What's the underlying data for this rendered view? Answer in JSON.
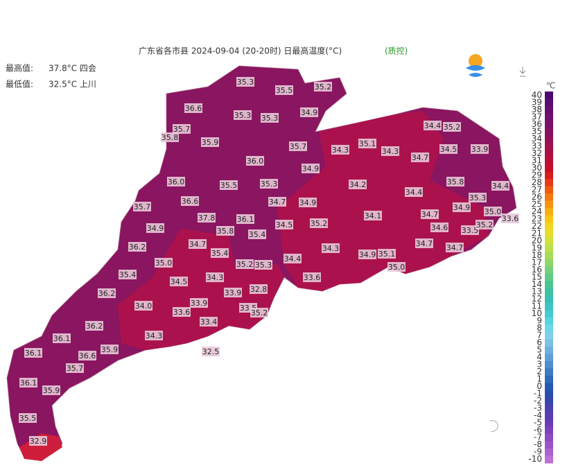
{
  "header": {
    "title": "广东省各市县 2024-09-04 (20-20时) 日最高温度(°C)",
    "qc": "(质控)"
  },
  "stats": {
    "max_label": "最高值:",
    "max_value": "37.8°C 四会",
    "min_label": "最低值:",
    "min_value": "32.5°C 上川"
  },
  "legend": {
    "unit": "℃",
    "ticks": [
      40,
      39,
      38,
      37,
      36,
      35,
      34,
      33,
      32,
      31,
      30,
      29,
      28,
      27,
      26,
      25,
      24,
      23,
      22,
      21,
      20,
      19,
      18,
      17,
      16,
      15,
      14,
      13,
      12,
      11,
      10,
      9,
      8,
      7,
      6,
      5,
      4,
      3,
      2,
      1,
      0,
      -1,
      -2,
      -3,
      -4,
      -5,
      -6,
      -7,
      -8,
      -9,
      -10
    ],
    "colors": [
      "#4b0a6e",
      "#5a0d72",
      "#640f70",
      "#6e106c",
      "#781166",
      "#85115f",
      "#921156",
      "#a0104c",
      "#ad0f42",
      "#bb0e37",
      "#c80d2c",
      "#d81c1c",
      "#e63a16",
      "#ed5a12",
      "#f27a10",
      "#f5960f",
      "#f7b00f",
      "#f7c613",
      "#f1d620",
      "#e4df2d",
      "#d2e03a",
      "#bde04a",
      "#a6dc5a",
      "#8ed66a",
      "#76d07a",
      "#5fcb87",
      "#4cc594",
      "#3fc1a2",
      "#3cbfb2",
      "#3ec3c3",
      "#45cbd2",
      "#56d4de",
      "#6cd8e6",
      "#7fd0ea",
      "#7cc1e6",
      "#6fb0df",
      "#5f9fd6",
      "#4f8dcd",
      "#3f7bc3",
      "#306aba",
      "#2259b2",
      "#2a4eb0",
      "#3a46b0",
      "#4a40b2",
      "#5a3cb4",
      "#6a3cb8",
      "#7b42bd",
      "#8c4ac3",
      "#9d55c9",
      "#ae62cf",
      "#bf70d6"
    ]
  },
  "stations": [
    "35.3",
    "35.5",
    "35.2",
    "36.6",
    "34.9",
    "35.3",
    "35.3",
    "35.7",
    "35.8",
    "35.9",
    "35.7",
    "34.3",
    "35.1",
    "34.3",
    "34.4",
    "35.2",
    "34.5",
    "33.9",
    "34.7",
    "36.0",
    "34.9",
    "36.0",
    "35.5",
    "35.3",
    "34.2",
    "34.4",
    "35.8",
    "34.4",
    "35.7",
    "36.6",
    "34.7",
    "34.9",
    "35.3",
    "34.9",
    "35.0",
    "33.6",
    "37.8",
    "36.1",
    "35.8",
    "35.4",
    "34.5",
    "35.2",
    "34.1",
    "34.7",
    "34.6",
    "33.5",
    "35.2",
    "34.9",
    "34.7",
    "36.2",
    "35.4",
    "34.3",
    "34.9",
    "35.1",
    "34.7",
    "34.7",
    "35.0",
    "35.2",
    "35.3",
    "34.4",
    "35.0",
    "35.4",
    "33.6",
    "34.5",
    "34.3",
    "33.9",
    "32.8",
    "36.2",
    "33.9",
    "34.0",
    "33.5",
    "35.2",
    "33.6",
    "33.4",
    "36.2",
    "34.3",
    "36.1",
    "35.9",
    "36.6",
    "32.5",
    "36.1",
    "35.7",
    "36.1",
    "35.9",
    "35.5",
    "32.9"
  ]
}
